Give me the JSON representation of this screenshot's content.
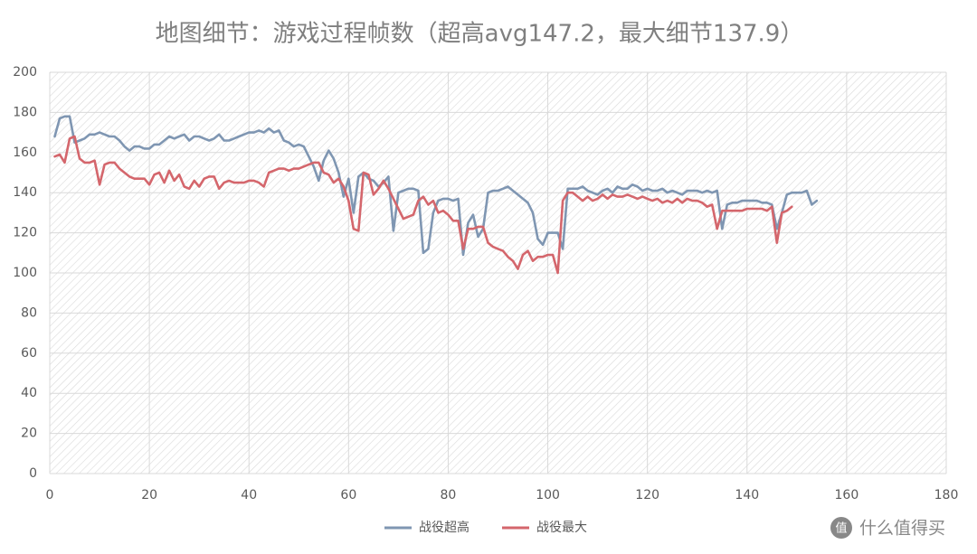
{
  "chart_data": {
    "type": "line",
    "title": "地图细节：游戏过程帧数（超高avg147.2，最大细节137.9）",
    "x": [
      1,
      2,
      3,
      4,
      5,
      6,
      7,
      8,
      9,
      10,
      11,
      12,
      13,
      14,
      15,
      16,
      17,
      18,
      19,
      20,
      21,
      22,
      23,
      24,
      25,
      26,
      27,
      28,
      29,
      30,
      31,
      32,
      33,
      34,
      35,
      36,
      37,
      38,
      39,
      40,
      41,
      42,
      43,
      44,
      45,
      46,
      47,
      48,
      49,
      50,
      51,
      52,
      53,
      54,
      55,
      56,
      57,
      58,
      59,
      60,
      61,
      62,
      63,
      64,
      65,
      66,
      67,
      68,
      69,
      70,
      71,
      72,
      73,
      74,
      75,
      76,
      77,
      78,
      79,
      80,
      81,
      82,
      83,
      84,
      85,
      86,
      87,
      88,
      89,
      90,
      91,
      92,
      93,
      94,
      95,
      96,
      97,
      98,
      99,
      100,
      101,
      102,
      103,
      104,
      105,
      106,
      107,
      108,
      109,
      110,
      111,
      112,
      113,
      114,
      115,
      116,
      117,
      118,
      119,
      120,
      121,
      122,
      123,
      124,
      125,
      126,
      127,
      128,
      129,
      130,
      131,
      132,
      133,
      134,
      135,
      136,
      137,
      138,
      139,
      140,
      141,
      142,
      143,
      144,
      145,
      146,
      147,
      148,
      149,
      150,
      151,
      152,
      153,
      154
    ],
    "series": [
      {
        "name": "战役超高",
        "color": "#7f96b2",
        "values": [
          168,
          177,
          178,
          178,
          165,
          166,
          167,
          169,
          169,
          170,
          169,
          168,
          168,
          166,
          163,
          161,
          163,
          163,
          162,
          162,
          164,
          164,
          166,
          168,
          167,
          168,
          169,
          166,
          168,
          168,
          167,
          166,
          167,
          169,
          166,
          166,
          167,
          168,
          169,
          170,
          170,
          171,
          170,
          172,
          170,
          171,
          166,
          165,
          163,
          164,
          163,
          158,
          153,
          146,
          156,
          161,
          157,
          150,
          138,
          147,
          130,
          148,
          150,
          147,
          146,
          143,
          145,
          148,
          121,
          140,
          141,
          142,
          142,
          141,
          110,
          112,
          130,
          136,
          137,
          137,
          136,
          137,
          109,
          125,
          129,
          118,
          122,
          140,
          141,
          141,
          142,
          143,
          141,
          139,
          137,
          135,
          130,
          117,
          114,
          120,
          120,
          120,
          112,
          142,
          142,
          142,
          143,
          141,
          140,
          139,
          141,
          142,
          140,
          143,
          142,
          142,
          144,
          143,
          141,
          142,
          141,
          141,
          142,
          140,
          141,
          140,
          139,
          141,
          141,
          141,
          140,
          141,
          140,
          141,
          122,
          134,
          135,
          135,
          136,
          136,
          136,
          136,
          135,
          135,
          134,
          122,
          130,
          139,
          140,
          140,
          140,
          141,
          134,
          136
        ]
      },
      {
        "name": "战役最大",
        "color": "#d4666c",
        "values": [
          158,
          159,
          155,
          167,
          168,
          157,
          155,
          155,
          156,
          144,
          154,
          155,
          155,
          152,
          150,
          148,
          147,
          147,
          147,
          144,
          149,
          150,
          145,
          151,
          146,
          149,
          143,
          142,
          146,
          143,
          147,
          148,
          148,
          142,
          145,
          146,
          145,
          145,
          145,
          146,
          146,
          145,
          143,
          150,
          151,
          152,
          152,
          151,
          152,
          152,
          153,
          154,
          155,
          155,
          150,
          149,
          145,
          147,
          143,
          136,
          122,
          121,
          150,
          149,
          139,
          142,
          146,
          142,
          137,
          132,
          127,
          128,
          129,
          136,
          138,
          134,
          136,
          130,
          131,
          129,
          126,
          126,
          112,
          122,
          122,
          123,
          123,
          115,
          113,
          112,
          111,
          108,
          106,
          102,
          109,
          111,
          106,
          108,
          108,
          109,
          109,
          100,
          136,
          140,
          140,
          138,
          136,
          138,
          136,
          137,
          139,
          137,
          139,
          138,
          138,
          139,
          138,
          137,
          138,
          137,
          136,
          137,
          135,
          136,
          135,
          137,
          135,
          137,
          136,
          136,
          135,
          133,
          134,
          122,
          131,
          131,
          131,
          131,
          131,
          132,
          132,
          132,
          132,
          131,
          133,
          115,
          130,
          131,
          133,
          null,
          null,
          null,
          null,
          null
        ]
      }
    ],
    "xlim": [
      0,
      180
    ],
    "xticks": [
      0,
      20,
      40,
      60,
      80,
      100,
      120,
      140,
      160,
      180
    ],
    "ylim": [
      0,
      200
    ],
    "yticks": [
      0,
      20,
      40,
      60,
      80,
      100,
      120,
      140,
      160,
      180,
      200
    ],
    "grid": true,
    "legend": "bottom",
    "watermark": "什么值得买",
    "watermark_icon": "值"
  }
}
